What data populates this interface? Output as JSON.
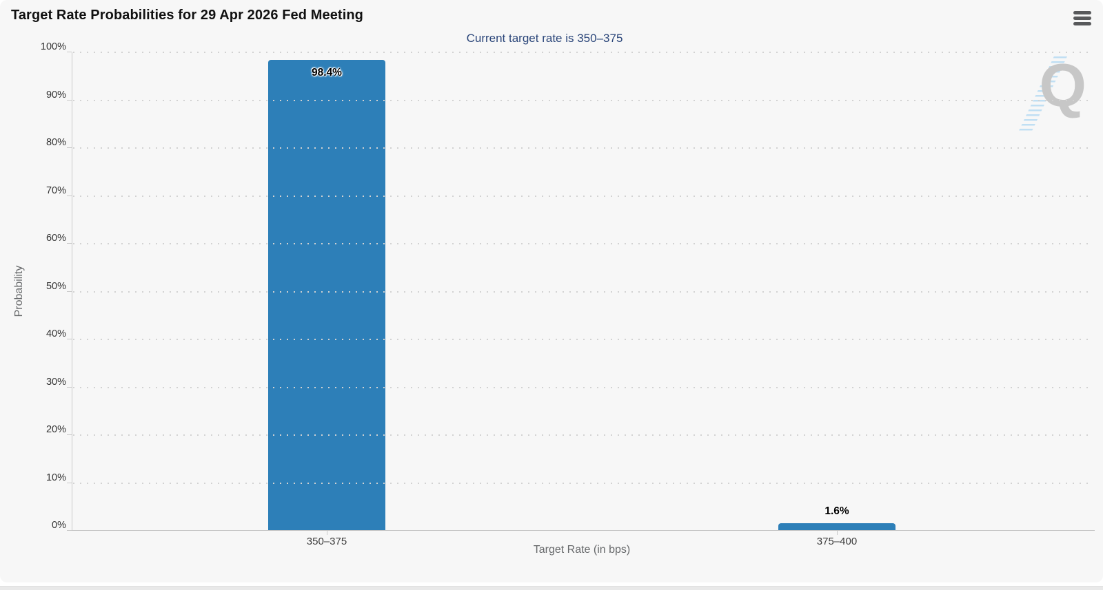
{
  "header": {
    "title": "Target Rate Probabilities for 29 Apr 2026 Fed Meeting",
    "subtitle": "Current target rate is 350–375"
  },
  "watermark": {
    "letter": "Q"
  },
  "chart_data": {
    "type": "bar",
    "title": "Target Rate Probabilities for 29 Apr 2026 Fed Meeting",
    "subtitle": "Current target rate is 350–375",
    "categories": [
      "350–375",
      "375–400"
    ],
    "values": [
      98.4,
      1.6
    ],
    "value_labels": [
      "98.4%",
      "1.6%"
    ],
    "xlabel": "Target Rate (in bps)",
    "ylabel": "Probability",
    "ylim": [
      0,
      100
    ],
    "ytick_step": 10,
    "ytick_suffix": "%",
    "legend_position": "none",
    "grid": "horizontal-dotted",
    "bar_color": "#2d7fb8",
    "subtitle_color": "#2a4579",
    "background_color": "#f7f7f7"
  }
}
